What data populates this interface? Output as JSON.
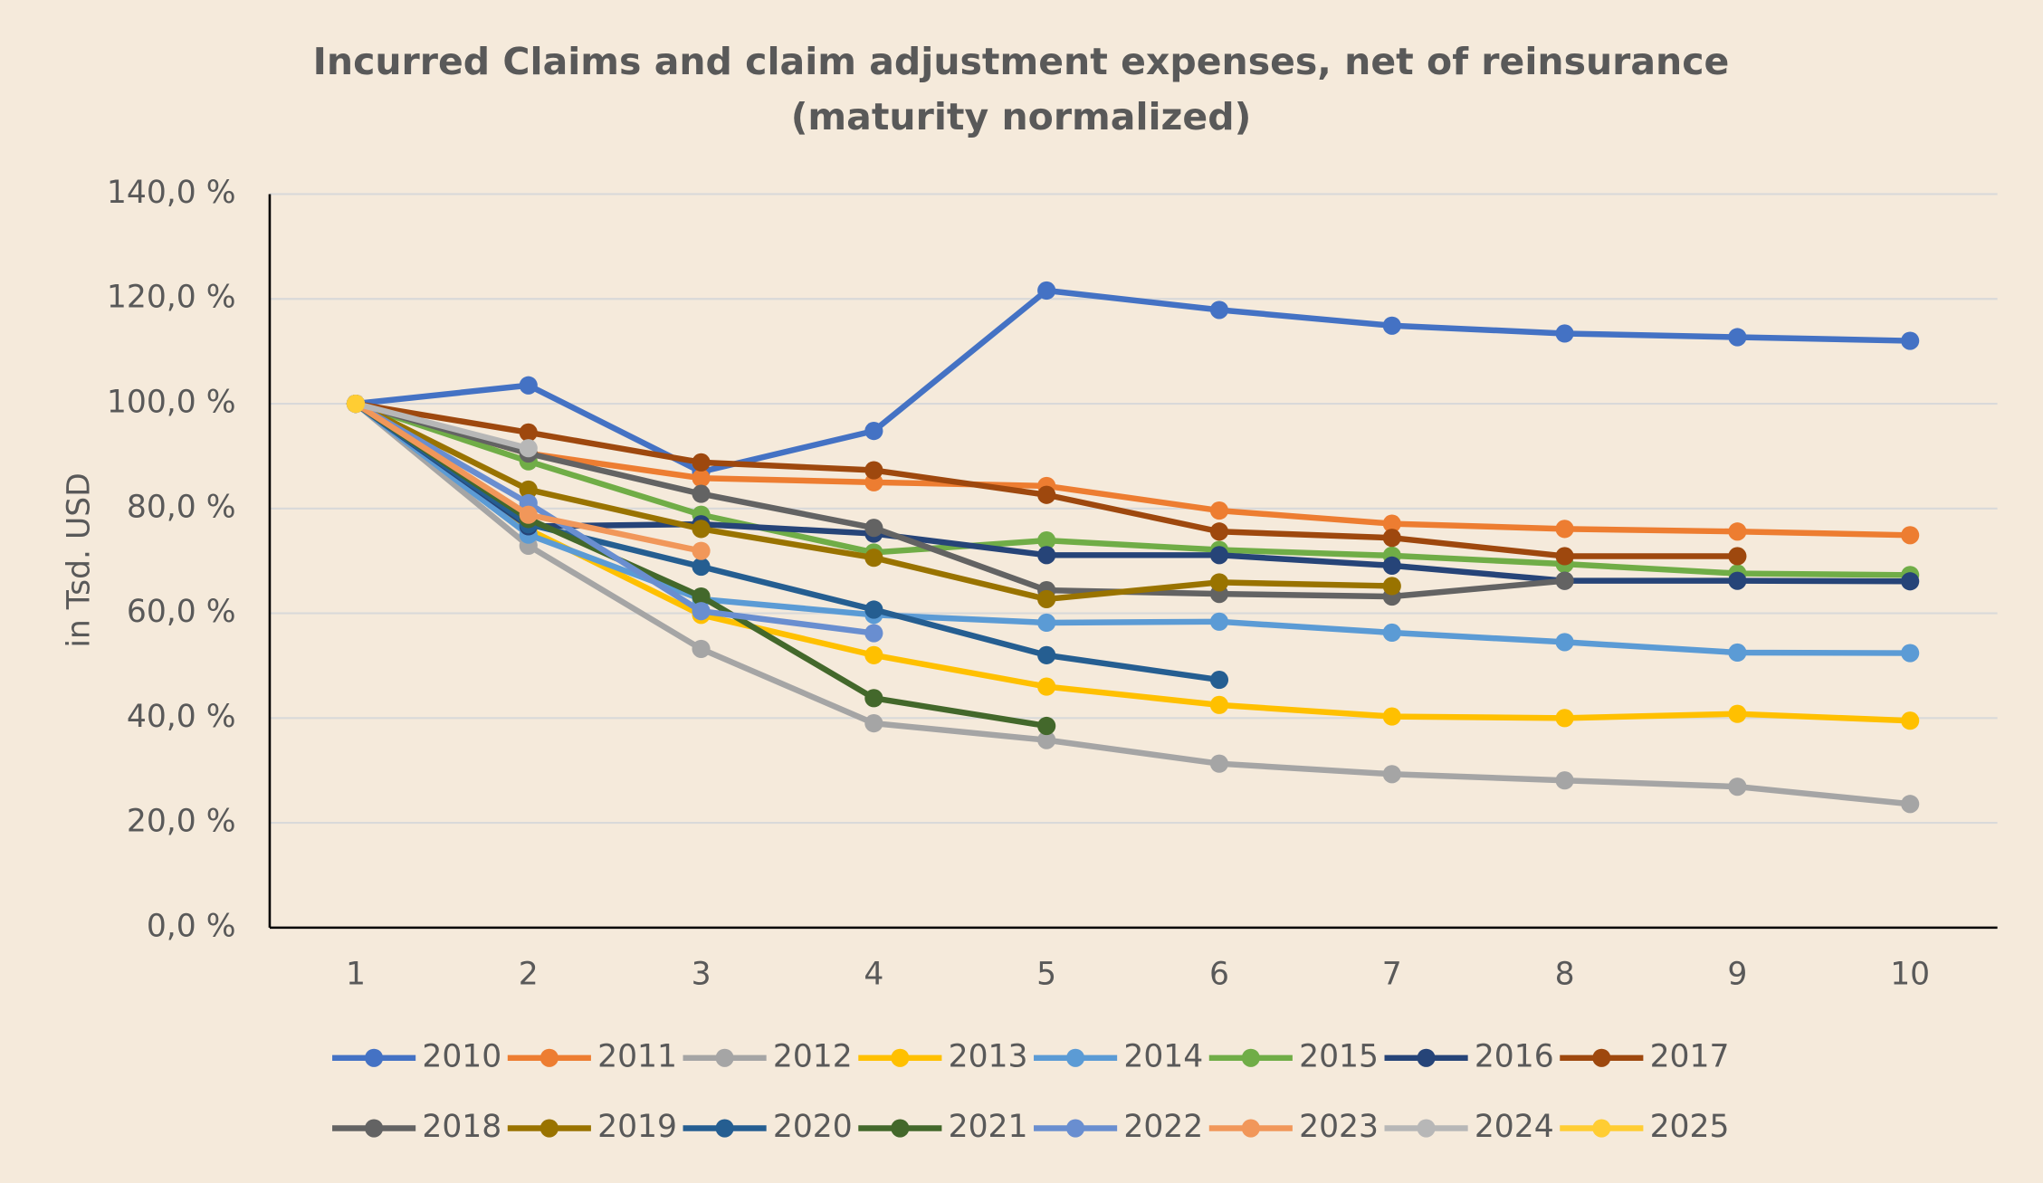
{
  "chart_data": {
    "type": "line",
    "title": "Incurred Claims and claim adjustment expenses, net of reinsurance (maturity normalized)",
    "y_label": "in Tsd. USD",
    "categories": [
      "1",
      "2",
      "3",
      "4",
      "5",
      "6",
      "7",
      "8",
      "9",
      "10"
    ],
    "ylim": [
      0,
      140
    ],
    "yticks": [
      {
        "value": 0,
        "label": "0,0 %"
      },
      {
        "value": 20,
        "label": "20,0 %"
      },
      {
        "value": 40,
        "label": "40,0 %"
      },
      {
        "value": 60,
        "label": "60,0 %"
      },
      {
        "value": 80,
        "label": "80,0 %"
      },
      {
        "value": 100,
        "label": "100,0 %"
      },
      {
        "value": 120,
        "label": "120,0 %"
      },
      {
        "value": 140,
        "label": "140,0 %"
      }
    ],
    "grid": true,
    "legend": "bottom",
    "series": [
      {
        "name": "2010",
        "color": "#4472c4",
        "values": [
          100,
          103.5,
          87,
          94.8,
          121.6,
          117.9,
          114.9,
          113.4,
          112.7,
          112
        ]
      },
      {
        "name": "2011",
        "color": "#ed7d31",
        "values": [
          100,
          90.5,
          85.8,
          85,
          84.3,
          79.6,
          77.1,
          76.1,
          75.6,
          74.9
        ]
      },
      {
        "name": "2012",
        "color": "#a5a5a5",
        "values": [
          100,
          72.9,
          53.2,
          39,
          35.8,
          31.3,
          29.3,
          28.1,
          26.9,
          23.6
        ]
      },
      {
        "name": "2013",
        "color": "#ffc000",
        "values": [
          100,
          76,
          59.7,
          52,
          46,
          42.5,
          40.3,
          40,
          40.8,
          39.5
        ]
      },
      {
        "name": "2014",
        "color": "#5b9bd5",
        "values": [
          100,
          75,
          62.7,
          59.7,
          58.2,
          58.4,
          56.3,
          54.5,
          52.5,
          52.4
        ]
      },
      {
        "name": "2015",
        "color": "#70ad47",
        "values": [
          100,
          89,
          78.8,
          71.6,
          73.9,
          72.1,
          71,
          69.4,
          67.6,
          67.3
        ]
      },
      {
        "name": "2016",
        "color": "#264478",
        "values": [
          100,
          76.6,
          77,
          75.2,
          71.1,
          71.1,
          69.1,
          66.2,
          66.2,
          66.1
        ]
      },
      {
        "name": "2017",
        "color": "#9e480e",
        "values": [
          100,
          94.5,
          88.8,
          87.3,
          82.6,
          75.6,
          74.4,
          70.9,
          70.9,
          null
        ]
      },
      {
        "name": "2018",
        "color": "#636363",
        "values": [
          100,
          90.5,
          82.8,
          76.3,
          64.4,
          63.7,
          63.2,
          66.2,
          null,
          null
        ]
      },
      {
        "name": "2019",
        "color": "#997300",
        "values": [
          100,
          83.6,
          76.1,
          70.6,
          62.7,
          65.9,
          65.2,
          null,
          null,
          null
        ]
      },
      {
        "name": "2020",
        "color": "#255e91",
        "values": [
          100,
          77,
          68.9,
          60.7,
          52,
          47.3,
          null,
          null,
          null,
          null
        ]
      },
      {
        "name": "2021",
        "color": "#43682b",
        "values": [
          100,
          78,
          63.2,
          43.8,
          38.5,
          null,
          null,
          null,
          null,
          null
        ]
      },
      {
        "name": "2022",
        "color": "#698ed0",
        "values": [
          100,
          81,
          60.4,
          56.2,
          null,
          null,
          null,
          null,
          null,
          null
        ]
      },
      {
        "name": "2023",
        "color": "#f1975a",
        "values": [
          100,
          78.8,
          71.9,
          null,
          null,
          null,
          null,
          null,
          null,
          null
        ]
      },
      {
        "name": "2024",
        "color": "#b7b7b7",
        "values": [
          100,
          91.5,
          null,
          null,
          null,
          null,
          null,
          null,
          null,
          null
        ]
      },
      {
        "name": "2025",
        "color": "#ffcd33",
        "values": [
          100,
          null,
          null,
          null,
          null,
          null,
          null,
          null,
          null,
          null
        ]
      }
    ]
  }
}
